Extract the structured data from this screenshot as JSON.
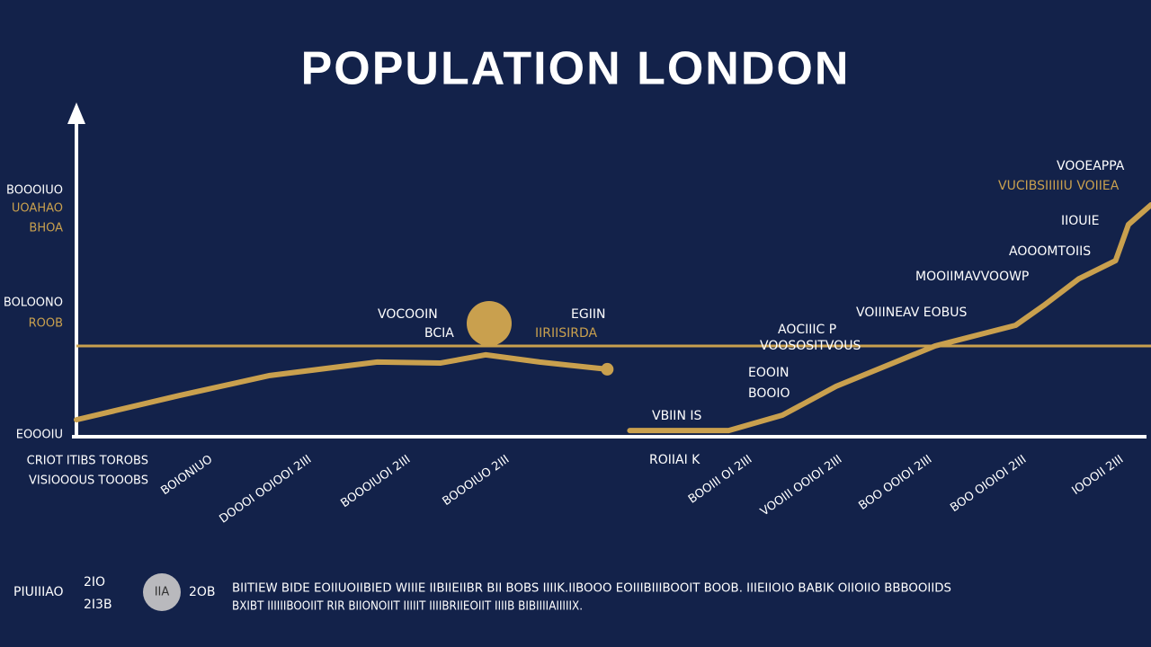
{
  "chart_data": {
    "type": "line",
    "title": "POPULATION LONDON",
    "xlim": [
      0,
      100
    ],
    "ylim": [
      0,
      100
    ],
    "x": [
      0,
      9.6,
      18,
      28,
      33.9,
      38.1,
      43.1,
      49.4,
      50.5,
      51.5,
      60.7,
      65.7,
      70.7,
      79.9,
      87.4,
      90,
      93.3,
      96.7,
      97.9,
      100
    ],
    "series": [
      {
        "color": "#c9a04e",
        "values": [
          4.9,
          12.3,
          18.4,
          22.5,
          22.2,
          24.7,
          22.5,
          20.3,
          null,
          1.6,
          1.6,
          6.3,
          15.1,
          27.4,
          33.7,
          39.7,
          47.9,
          53.4,
          64.4,
          70.4
        ]
      }
    ],
    "reference_line": 27.4,
    "y_axis_labels": [
      "BOOOIUO",
      "UOAHAO",
      "BHOA",
      "BOLOONO",
      "ROOB",
      "EOOOIU"
    ],
    "x_axis_title": [
      "CRIOT ITIBS TOROBS",
      "VISIOOOUS TOOOBS"
    ],
    "x_tick_labels": [
      "BOIONIUO",
      "DOOOI OOIOOI 2III",
      "BOOOIUOI 2III",
      "BOOOIUO 2III",
      "BOOIII OI 2III",
      "VOOIII OOIOI 2III",
      "BOO OOIOI 2III",
      "BOO OIOIOI 2III",
      "IOOOII 2III"
    ],
    "annotations": [
      "VOCOOIN",
      "BCIA",
      "EGIIN",
      "IIRIISIRDA",
      "AOCIIIC P",
      "VOOSOSITVOUS",
      "EOOIN",
      "BOOIO",
      "VBIIN IS",
      "ROIIAI K",
      "VOIIINEAV EOBUS",
      "MOOIIMAVVOOWP",
      "AOOOMTOIIS",
      "IIOUIE",
      "VOOEAPPA",
      "VUCIBSIIIIIU VOIIEA"
    ],
    "footer": {
      "label": "PIUIIIAO",
      "years": [
        "2IO",
        "2I3B"
      ],
      "badge": "IIA",
      "badge_year": "2OB",
      "notes": [
        "BIITIEW BIDE EOIIUOIIBIED WIIIE IIBIIEIIBR BII BOBS IIIIK.IIBOOO EOIIIBIIIBOOIT BOOB. IIIEIIOIO BABIK OIIOIIO BBBOOIIDS",
        "BXIBT IIIIIIBOOIIT RIR BIIONOIIT IIIIIT IIIIBRIIEOIIT IIIIB BIBIIIIAIIIIIX."
      ]
    }
  }
}
